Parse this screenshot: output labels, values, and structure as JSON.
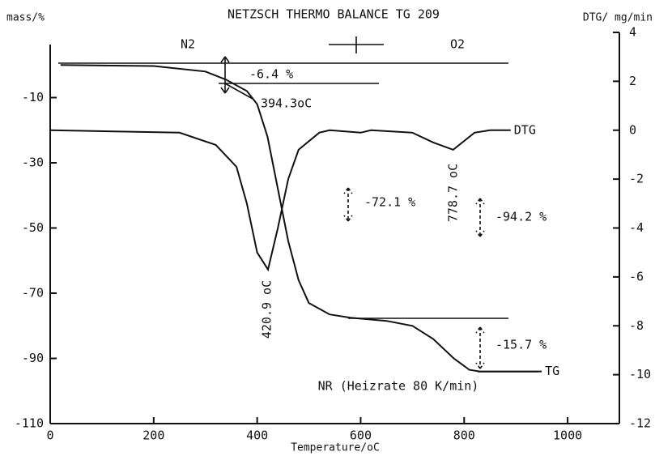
{
  "chart_data": {
    "type": "line",
    "title": "NETZSCH  THERMO BALANCE TG 209",
    "y_label": "mass/%",
    "y2_label": "DTG/ mg/min",
    "x_label": "Temperature/oC",
    "xlim": [
      0,
      1100
    ],
    "xticks": [
      0,
      200,
      400,
      600,
      800,
      1000
    ],
    "ylim": [
      -110,
      10
    ],
    "yticks": [
      -10,
      -30,
      -50,
      -70,
      -90,
      -110
    ],
    "y2lim": [
      -12,
      4
    ],
    "y2ticks": [
      4,
      2,
      0,
      -2,
      -4,
      -6,
      -8,
      -10,
      -12
    ],
    "series": [
      {
        "name": "TG",
        "color": "#111111",
        "axis": "y",
        "x": [
          20,
          200,
          300,
          340,
          380,
          400,
          420,
          440,
          460,
          480,
          500,
          540,
          580,
          650,
          700,
          740,
          780,
          810,
          830,
          950
        ],
        "values": [
          0,
          -0.3,
          -2,
          -4.5,
          -8,
          -12,
          -22,
          -38,
          -54,
          -66,
          -73,
          -76.5,
          -77.5,
          -78.5,
          -80,
          -84,
          -90,
          -93.5,
          -94,
          -94
        ]
      },
      {
        "name": "DTG",
        "color": "#111111",
        "axis": "y2",
        "x": [
          0,
          250,
          320,
          360,
          380,
          400,
          420.9,
          440,
          460,
          480,
          520,
          540,
          600,
          620,
          700,
          740,
          778.7,
          820,
          850,
          890
        ],
        "values": [
          0,
          -0.1,
          -0.6,
          -1.5,
          -3,
          -5,
          -5.7,
          -4,
          -2,
          -0.8,
          -0.1,
          0,
          -0.1,
          0,
          -0.1,
          -0.5,
          -0.8,
          -0.1,
          0,
          0
        ]
      }
    ],
    "annotations": [
      "N2",
      "O2",
      "-6.4 %",
      "394.3oC",
      "-72.1 %",
      "778.7 oC",
      "-94.2 %",
      "420.9 oC",
      "-15.7 %",
      "NR (Heizrate 80 K/min)"
    ]
  }
}
